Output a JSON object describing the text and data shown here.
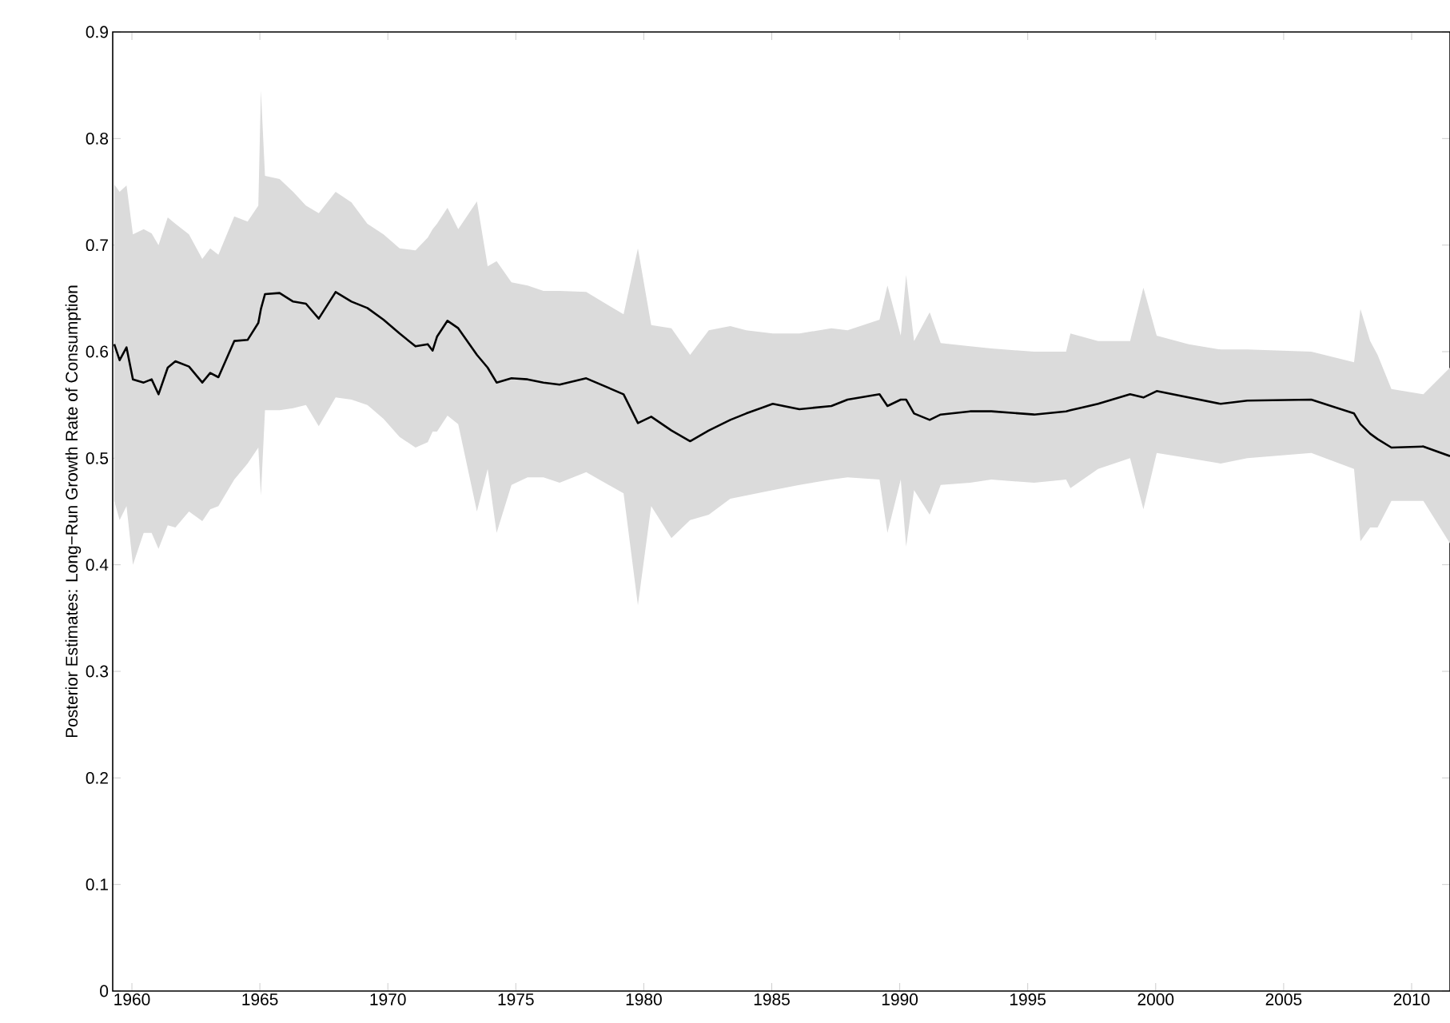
{
  "chart_data": {
    "type": "line",
    "ylabel": "Posterior Estimates: Long−Run Growth Rate of Consumption",
    "x": [
      1959.31,
      1959.52,
      1959.79,
      1960.04,
      1960.46,
      1960.77,
      1961.04,
      1961.4,
      1961.7,
      1962.23,
      1962.75,
      1963.06,
      1963.38,
      1964.0,
      1964.52,
      1964.94,
      1965.04,
      1965.2,
      1965.77,
      1966.3,
      1966.8,
      1967.3,
      1967.96,
      1968.58,
      1969.2,
      1969.83,
      1970.46,
      1971.08,
      1971.56,
      1971.75,
      1971.92,
      1972.33,
      1972.75,
      1973.48,
      1973.9,
      1974.25,
      1974.83,
      1975.46,
      1976.08,
      1976.71,
      1977.75,
      1979.21,
      1979.77,
      1980.29,
      1981.08,
      1981.81,
      1982.54,
      1983.38,
      1984.0,
      1985.04,
      1986.08,
      1987.33,
      1987.96,
      1989.21,
      1989.52,
      1990.04,
      1990.25,
      1990.56,
      1991.17,
      1991.6,
      1992.75,
      1993.58,
      1995.25,
      1996.5,
      1996.67,
      1997.75,
      1999.0,
      1999.52,
      2000.04,
      2001.29,
      2002.54,
      2003.58,
      2006.08,
      2007.75,
      2008.0,
      2008.38,
      2008.67,
      2009.21,
      2010.46,
      2011.5
    ],
    "series": [
      {
        "color": "#000000",
        "values": [
          0.607,
          0.592,
          0.604,
          0.574,
          0.571,
          0.574,
          0.56,
          0.585,
          0.591,
          0.586,
          0.571,
          0.58,
          0.576,
          0.61,
          0.611,
          0.627,
          0.64,
          0.654,
          0.655,
          0.647,
          0.645,
          0.631,
          0.656,
          0.647,
          0.641,
          0.63,
          0.617,
          0.605,
          0.607,
          0.601,
          0.614,
          0.629,
          0.622,
          0.597,
          0.585,
          0.571,
          0.575,
          0.574,
          0.571,
          0.569,
          0.575,
          0.56,
          0.533,
          0.539,
          0.526,
          0.516,
          0.526,
          0.536,
          0.542,
          0.551,
          0.546,
          0.549,
          0.555,
          0.56,
          0.549,
          0.555,
          0.555,
          0.542,
          0.536,
          0.541,
          0.544,
          0.544,
          0.541,
          0.544,
          0.545,
          0.551,
          0.56,
          0.557,
          0.563,
          0.557,
          0.551,
          0.554,
          0.555,
          0.542,
          0.532,
          0.523,
          0.518,
          0.51,
          0.511,
          0.502
        ],
        "lower": [
          0.46,
          0.442,
          0.455,
          0.4,
          0.43,
          0.43,
          0.415,
          0.437,
          0.435,
          0.45,
          0.441,
          0.452,
          0.455,
          0.48,
          0.495,
          0.51,
          0.465,
          0.545,
          0.545,
          0.547,
          0.55,
          0.53,
          0.557,
          0.555,
          0.55,
          0.537,
          0.52,
          0.51,
          0.515,
          0.525,
          0.525,
          0.54,
          0.532,
          0.45,
          0.49,
          0.43,
          0.475,
          0.482,
          0.482,
          0.477,
          0.487,
          0.467,
          0.362,
          0.455,
          0.425,
          0.442,
          0.447,
          0.462,
          0.465,
          0.47,
          0.475,
          0.48,
          0.482,
          0.48,
          0.43,
          0.48,
          0.417,
          0.47,
          0.447,
          0.475,
          0.477,
          0.48,
          0.477,
          0.48,
          0.472,
          0.49,
          0.5,
          0.452,
          0.505,
          0.5,
          0.495,
          0.5,
          0.505,
          0.49,
          0.422,
          0.435,
          0.435,
          0.46,
          0.46,
          0.42
        ],
        "upper": [
          0.757,
          0.75,
          0.756,
          0.71,
          0.715,
          0.711,
          0.7,
          0.726,
          0.72,
          0.71,
          0.687,
          0.697,
          0.691,
          0.727,
          0.722,
          0.737,
          0.845,
          0.765,
          0.762,
          0.75,
          0.737,
          0.73,
          0.75,
          0.74,
          0.72,
          0.71,
          0.697,
          0.695,
          0.707,
          0.715,
          0.72,
          0.735,
          0.715,
          0.741,
          0.68,
          0.685,
          0.665,
          0.662,
          0.657,
          0.657,
          0.656,
          0.635,
          0.697,
          0.625,
          0.622,
          0.597,
          0.62,
          0.624,
          0.62,
          0.617,
          0.617,
          0.622,
          0.62,
          0.63,
          0.662,
          0.615,
          0.672,
          0.61,
          0.637,
          0.608,
          0.605,
          0.603,
          0.6,
          0.6,
          0.617,
          0.61,
          0.61,
          0.66,
          0.615,
          0.607,
          0.602,
          0.602,
          0.6,
          0.59,
          0.64,
          0.61,
          0.597,
          0.565,
          0.56,
          0.585
        ]
      }
    ],
    "xlim": [
      1959.25,
      2011.5
    ],
    "ylim": [
      0,
      0.9
    ],
    "xticks": [
      1960,
      1965,
      1970,
      1975,
      1980,
      1985,
      1990,
      1995,
      2000,
      2005,
      2010
    ],
    "yticks": [
      0,
      0.1,
      0.2,
      0.3,
      0.4,
      0.5,
      0.6,
      0.7,
      0.8,
      0.9
    ],
    "line_style": "solid"
  }
}
